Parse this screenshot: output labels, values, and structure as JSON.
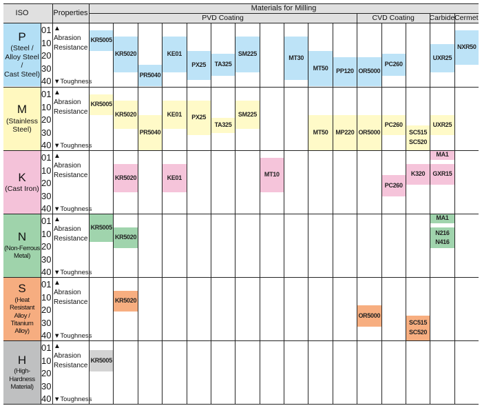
{
  "header": {
    "iso": "ISO",
    "properties": "Properties",
    "materials": "Materials for Milling",
    "groups": [
      {
        "label": "PVD Coating",
        "from_col": 0,
        "to_col": 10
      },
      {
        "label": "CVD Coating",
        "from_col": 11,
        "to_col": 13
      },
      {
        "label": "Carbide",
        "from_col": 14,
        "to_col": 14
      },
      {
        "label": "Cermet",
        "from_col": 15,
        "to_col": 15
      }
    ]
  },
  "scale_labels": [
    "01",
    "10",
    "20",
    "30",
    "40"
  ],
  "property_top": [
    "▲ Abrasion",
    "Resistance"
  ],
  "property_bottom": "▼Toughness",
  "rows": [
    {
      "letter": "P",
      "name": [
        "(Steel /",
        "Alloy Steel /",
        "Cast Steel)"
      ],
      "color": "#b3dff5",
      "bar_color": "#bde3f7",
      "grades": [
        {
          "col": 0,
          "labels": [
            "KR5005"
          ],
          "range": [
            1,
            18
          ]
        },
        {
          "col": 1,
          "labels": [
            "KR5020"
          ],
          "range": [
            6,
            35
          ]
        },
        {
          "col": 2,
          "labels": [
            "PR5040"
          ],
          "range": [
            29,
            46
          ]
        },
        {
          "col": 3,
          "labels": [
            "KE01"
          ],
          "range": [
            6,
            35
          ]
        },
        {
          "col": 4,
          "labels": [
            "PX25"
          ],
          "range": [
            18,
            41
          ]
        },
        {
          "col": 5,
          "labels": [
            "TA325"
          ],
          "range": [
            20,
            38
          ]
        },
        {
          "col": 6,
          "labels": [
            "SM225"
          ],
          "range": [
            6,
            35
          ]
        },
        {
          "col": 8,
          "labels": [
            "MT30"
          ],
          "range": [
            6,
            41
          ]
        },
        {
          "col": 9,
          "labels": [
            "MT50"
          ],
          "range": [
            18,
            46
          ]
        },
        {
          "col": 10,
          "labels": [
            "PP120"
          ],
          "range": [
            23,
            46
          ]
        },
        {
          "col": 11,
          "labels": [
            "OR5000"
          ],
          "range": [
            23,
            46
          ]
        },
        {
          "col": 12,
          "labels": [
            "PC260"
          ],
          "range": [
            20,
            38
          ]
        },
        {
          "col": 14,
          "labels": [
            "UXR25"
          ],
          "range": [
            12,
            35
          ]
        },
        {
          "col": 15,
          "labels": [
            "NXR50"
          ],
          "range": [
            1,
            29
          ]
        }
      ]
    },
    {
      "letter": "M",
      "name": [
        "(Stainless",
        "Steel)"
      ],
      "color": "#fff8bf",
      "bar_color": "#fffac8",
      "grades": [
        {
          "col": 0,
          "labels": [
            "KR5005"
          ],
          "range": [
            1,
            18
          ]
        },
        {
          "col": 1,
          "labels": [
            "KR5020"
          ],
          "range": [
            6,
            29
          ]
        },
        {
          "col": 2,
          "labels": [
            "PR5040"
          ],
          "range": [
            18,
            46
          ]
        },
        {
          "col": 3,
          "labels": [
            "KE01"
          ],
          "range": [
            6,
            29
          ]
        },
        {
          "col": 4,
          "labels": [
            "PX25"
          ],
          "range": [
            6,
            34
          ]
        },
        {
          "col": 5,
          "labels": [
            "TA325"
          ],
          "range": [
            20,
            32
          ]
        },
        {
          "col": 6,
          "labels": [
            "SM225"
          ],
          "range": [
            6,
            29
          ]
        },
        {
          "col": 9,
          "labels": [
            "MT50"
          ],
          "range": [
            18,
            46
          ]
        },
        {
          "col": 10,
          "labels": [
            "MP220"
          ],
          "range": [
            18,
            46
          ]
        },
        {
          "col": 11,
          "labels": [
            "OR5000"
          ],
          "range": [
            18,
            46
          ]
        },
        {
          "col": 12,
          "labels": [
            "PC260"
          ],
          "range": [
            18,
            34
          ]
        },
        {
          "col": 13,
          "labels": [
            "SC515",
            "SC520"
          ],
          "range": [
            26,
            46
          ]
        },
        {
          "col": 14,
          "labels": [
            "UXR25"
          ],
          "range": [
            18,
            34
          ]
        }
      ]
    },
    {
      "letter": "K",
      "name": [
        "(Cast Iron)"
      ],
      "color": "#f4c2d9",
      "bar_color": "#f5c4da",
      "grades": [
        {
          "col": 1,
          "labels": [
            "KR5020"
          ],
          "range": [
            6,
            29
          ]
        },
        {
          "col": 3,
          "labels": [
            "KE01"
          ],
          "range": [
            6,
            29
          ]
        },
        {
          "col": 7,
          "labels": [
            "MT10"
          ],
          "range": [
            1,
            29
          ]
        },
        {
          "col": 12,
          "labels": [
            "PC260"
          ],
          "range": [
            15,
            32
          ]
        },
        {
          "col": 13,
          "labels": [
            "K320"
          ],
          "range": [
            6,
            23
          ]
        },
        {
          "col": 14,
          "labels": [
            "MA1"
          ],
          "range": [
            -5,
            3
          ]
        },
        {
          "col": 14,
          "labels": [
            "GXR15"
          ],
          "range": [
            6,
            23
          ]
        }
      ]
    },
    {
      "letter": "N",
      "name": [
        "(Non-Ferrous",
        "Metal)"
      ],
      "color": "#9fd3ab",
      "bar_color": "#a0d4ad",
      "grades": [
        {
          "col": 0,
          "labels": [
            "KR5005"
          ],
          "range": [
            -5,
            18
          ]
        },
        {
          "col": 1,
          "labels": [
            "KR5020"
          ],
          "range": [
            6,
            23
          ]
        },
        {
          "col": 14,
          "labels": [
            "MA1"
          ],
          "range": [
            -5,
            3
          ]
        },
        {
          "col": 14,
          "labels": [
            "N216",
            "N416"
          ],
          "range": [
            6,
            23
          ]
        }
      ]
    },
    {
      "letter": "S",
      "name": [
        "(Heat Resistant",
        "Alloy / Titanium",
        "Alloy)"
      ],
      "color": "#f6ad80",
      "bar_color": "#f7ae80",
      "grades": [
        {
          "col": 1,
          "labels": [
            "KR5020"
          ],
          "range": [
            6,
            23
          ]
        },
        {
          "col": 11,
          "labels": [
            "OR5000"
          ],
          "range": [
            18,
            35
          ]
        },
        {
          "col": 13,
          "labels": [
            "SC515",
            "SC520"
          ],
          "range": [
            26,
            46
          ]
        }
      ]
    },
    {
      "letter": "H",
      "name": [
        "(High-Hardness",
        "Material)"
      ],
      "color": "#bfc0c1",
      "bar_color": "#d3d3d3",
      "grades": [
        {
          "col": 0,
          "labels": [
            "KR5005"
          ],
          "range": [
            3,
            20
          ]
        }
      ]
    }
  ]
}
